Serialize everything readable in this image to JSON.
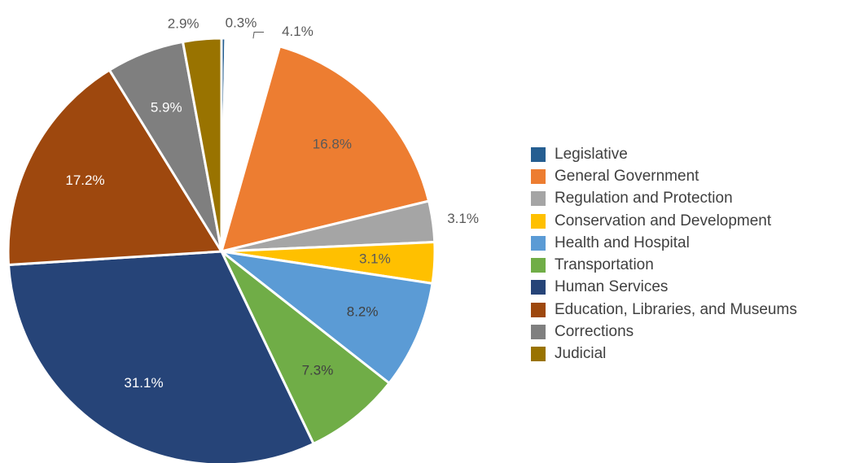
{
  "chart_data": {
    "type": "pie",
    "series": [
      {
        "category": "Legislative",
        "value": 0.3,
        "label": "0.3%",
        "color": "#255E91",
        "label_color": "#595959",
        "label_pos": "outside"
      },
      {
        "category": "",
        "value": 4.1,
        "label": "4.1%",
        "color": "#FFFFFF",
        "label_color": "#595959",
        "label_pos": "outside-leader"
      },
      {
        "category": "General Government",
        "value": 16.8,
        "label": "16.8%",
        "color": "#ED7D31",
        "label_color": "#595959",
        "label_pos": "inside"
      },
      {
        "category": "Regulation and Protection",
        "value": 3.1,
        "label": "3.1%",
        "color": "#A5A5A5",
        "label_color": "#595959",
        "label_pos": "outside"
      },
      {
        "category": "Conservation and Development",
        "value": 3.1,
        "label": "3.1%",
        "color": "#FFC000",
        "label_color": "#595959",
        "label_pos": "inside"
      },
      {
        "category": "Health and Hospital",
        "value": 8.2,
        "label": "8.2%",
        "color": "#5B9BD5",
        "label_color": "#404040",
        "label_pos": "inside"
      },
      {
        "category": "Transportation",
        "value": 7.3,
        "label": "7.3%",
        "color": "#70AD47",
        "label_color": "#404040",
        "label_pos": "inside"
      },
      {
        "category": "Human Services",
        "value": 31.1,
        "label": "31.1%",
        "color": "#264478",
        "label_color": "#FFFFFF",
        "label_pos": "inside"
      },
      {
        "category": "Education, Libraries, and Museums",
        "value": 17.2,
        "label": "17.2%",
        "color": "#9E480E",
        "label_color": "#FFFFFF",
        "label_pos": "inside"
      },
      {
        "category": "Corrections",
        "value": 5.9,
        "label": "5.9%",
        "color": "#7F7F7F",
        "label_color": "#FFFFFF",
        "label_pos": "inside"
      },
      {
        "category": "Judicial",
        "value": 2.9,
        "label": "2.9%",
        "color": "#997300",
        "label_color": "#595959",
        "label_pos": "outside"
      }
    ],
    "legend": {
      "position": "right",
      "items": [
        {
          "label": "Legislative",
          "color": "#255E91"
        },
        {
          "label": "General Government",
          "color": "#ED7D31"
        },
        {
          "label": "Regulation and Protection",
          "color": "#A5A5A5"
        },
        {
          "label": "Conservation and Development",
          "color": "#FFC000"
        },
        {
          "label": "Health and Hospital",
          "color": "#5B9BD5"
        },
        {
          "label": "Transportation",
          "color": "#70AD47"
        },
        {
          "label": "Human Services",
          "color": "#264478"
        },
        {
          "label": "Education, Libraries, and Museums",
          "color": "#9E480E"
        },
        {
          "label": "Corrections",
          "color": "#7F7F7F"
        },
        {
          "label": "Judicial",
          "color": "#997300"
        }
      ]
    }
  }
}
